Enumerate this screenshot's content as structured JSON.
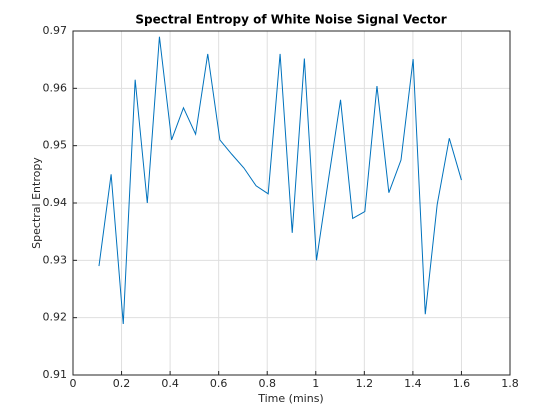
{
  "chart_data": {
    "type": "line",
    "title": "Spectral Entropy of White Noise Signal Vector",
    "x_label": "Time (mins)",
    "y_label": "Spectral Entropy",
    "x": [
      0.107,
      0.157,
      0.207,
      0.256,
      0.306,
      0.356,
      0.406,
      0.455,
      0.505,
      0.555,
      0.605,
      0.654,
      0.704,
      0.754,
      0.804,
      0.853,
      0.903,
      0.953,
      1.003,
      1.053,
      1.102,
      1.152,
      1.202,
      1.252,
      1.301,
      1.351,
      1.401,
      1.451,
      1.5,
      1.55,
      1.6
    ],
    "series": [
      {
        "color": "#0072bd",
        "values": [
          0.929,
          0.945,
          0.9189,
          0.9615,
          0.94,
          0.969,
          0.951,
          0.9566,
          0.952,
          0.966,
          0.951,
          0.9485,
          0.9461,
          0.943,
          0.9416,
          0.966,
          0.9348,
          0.9652,
          0.93,
          0.9443,
          0.958,
          0.9373,
          0.9385,
          0.9604,
          0.9418,
          0.9475,
          0.9651,
          0.9206,
          0.9397,
          0.9513,
          0.944
        ]
      }
    ],
    "xlim": [
      0,
      1.8
    ],
    "xticks": [
      0,
      0.2,
      0.4,
      0.6,
      0.8,
      1,
      1.2,
      1.4,
      1.6,
      1.8
    ],
    "ylim": [
      0.91,
      0.97
    ],
    "yticks": [
      0.91,
      0.92,
      0.93,
      0.94,
      0.95,
      0.96,
      0.97
    ],
    "grid": true
  }
}
